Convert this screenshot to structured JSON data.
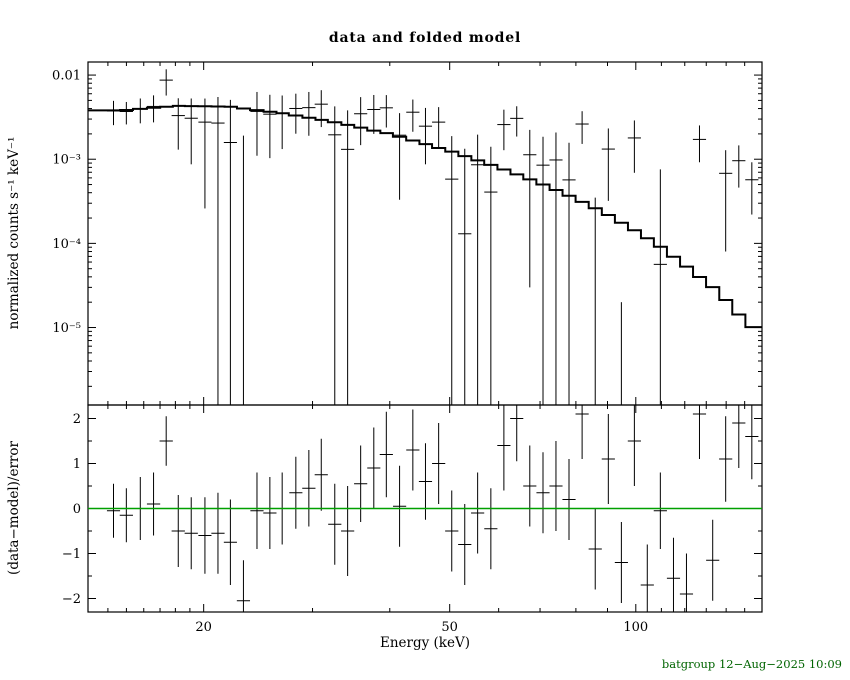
{
  "title": "data and folded model",
  "footer": {
    "text": "batgroup 12−Aug−2025 10:09"
  },
  "colors": {
    "background": "#ffffff",
    "frame": "#000000",
    "model_line": "#000000",
    "data_marks": "#000000",
    "zero_line": "#00a000",
    "footer_text": "#006400"
  },
  "axes": {
    "x": {
      "label": "Energy (keV)",
      "scale": "log",
      "min": 13,
      "max": 160,
      "major_ticks": [
        20,
        50,
        100
      ],
      "major_tick_labels": [
        "20",
        "50",
        "100"
      ],
      "minor_ticks": [
        14,
        15,
        16,
        17,
        18,
        19,
        30,
        40,
        60,
        70,
        80,
        90,
        110,
        120,
        130,
        140,
        150
      ]
    },
    "y_top": {
      "label": "normalized counts s⁻¹ keV⁻¹",
      "scale": "log",
      "min": 1.2e-06,
      "max": 0.0143,
      "major_ticks": [
        0.01,
        0.001,
        0.0001,
        1e-05
      ],
      "major_tick_labels": [
        "0.01",
        "10⁻³",
        "10⁻⁴",
        "10⁻⁵"
      ]
    },
    "y_bottom": {
      "label": "(data−model)/error",
      "scale": "linear",
      "min": -2.3,
      "max": 2.3,
      "major_ticks": [
        2,
        1,
        0,
        -1,
        -2
      ],
      "major_tick_labels": [
        "2",
        "1",
        "0",
        "−1",
        "−2"
      ],
      "minor_ticks": [
        1.5,
        0.5,
        -0.5,
        -1.5
      ]
    }
  },
  "chart_data": {
    "type": "scatter",
    "subtype": "xray-spectrum-data-and-folded-model-with-residuals",
    "title": "data and folded model",
    "xlabel": "Energy (keV)",
    "ylabel_top": "normalized counts s⁻¹ keV⁻¹",
    "ylabel_bottom": "(data−model)/error",
    "x_range": [
      13,
      160
    ],
    "y_top_range": [
      1.2e-06,
      0.0143
    ],
    "y_bottom_range": [
      -2.3,
      2.3
    ],
    "grid": false,
    "energy": [
      14.3,
      15.0,
      15.8,
      16.6,
      17.4,
      18.2,
      19.1,
      20.1,
      21.1,
      22.1,
      23.2,
      24.4,
      25.6,
      26.8,
      28.2,
      29.6,
      31.0,
      32.6,
      34.2,
      35.9,
      37.7,
      39.5,
      41.5,
      43.6,
      45.7,
      48.0,
      50.4,
      52.9,
      55.5,
      58.3,
      61.2,
      64.2,
      67.4,
      70.8,
      74.3,
      78.0,
      81.9,
      86.0,
      90.3,
      94.8,
      99.5,
      104.4,
      109.6,
      115.1,
      120.8,
      126.8,
      133.2,
      139.8,
      146.8,
      154.1
    ],
    "half_width": [
      0.35,
      0.37,
      0.39,
      0.41,
      0.43,
      0.45,
      0.47,
      0.49,
      0.52,
      0.54,
      0.57,
      0.6,
      0.63,
      0.66,
      0.69,
      0.73,
      0.76,
      0.8,
      0.84,
      0.88,
      0.92,
      0.97,
      1.02,
      1.07,
      1.12,
      1.18,
      1.24,
      1.3,
      1.36,
      1.43,
      1.5,
      1.57,
      1.65,
      1.73,
      1.82,
      1.91,
      2.01,
      2.11,
      2.21,
      2.32,
      2.44,
      2.56,
      2.69,
      2.82,
      2.96,
      3.11,
      3.26,
      3.43,
      3.6,
      3.78
    ],
    "model": [
      0.0038,
      0.00385,
      0.00397,
      0.00409,
      0.00421,
      0.0043,
      0.00428,
      0.00426,
      0.00423,
      0.0042,
      0.00401,
      0.00383,
      0.00367,
      0.00352,
      0.00331,
      0.00311,
      0.00293,
      0.00275,
      0.00256,
      0.00237,
      0.00219,
      0.00204,
      0.00185,
      0.00167,
      0.00151,
      0.00136,
      0.00123,
      0.00109,
      0.000969,
      0.000857,
      0.000756,
      0.000661,
      0.000577,
      0.0005,
      0.00043,
      0.000368,
      0.000311,
      0.000261,
      0.000217,
      0.000176,
      0.000143,
      0.000115,
      9.13e-05,
      6.94e-05,
      5.29e-05,
      3.99e-05,
      3.02e-05,
      2.12e-05,
      1.43e-05,
      1.01e-05
    ],
    "data": [
      0.00374,
      0.00369,
      0.00397,
      0.00424,
      0.00871,
      0.0033,
      0.00307,
      0.00276,
      0.00269,
      0.00158,
      -9e-05,
      0.0037,
      0.00343,
      0.00352,
      0.00401,
      0.0041,
      0.00451,
      0.00195,
      0.00131,
      0.00347,
      0.0039,
      0.00408,
      0.00193,
      0.00362,
      0.00247,
      0.00276,
      0.00058,
      0.00013,
      0.000859,
      0.000407,
      0.00258,
      0.00306,
      0.00113,
      0.00085,
      0.00098,
      0.000568,
      0.00262,
      -0.00055,
      0.00132,
      -0.00078,
      0.00179,
      -0.00091,
      5.63e-05,
      -0.00071,
      -0.0008,
      0.00172,
      -0.00043,
      0.00068,
      0.00096,
      0.00057
    ],
    "error": [
      0.0012,
      0.0011,
      0.0013,
      0.0015,
      0.003,
      0.002,
      0.0022,
      0.0025,
      0.0028,
      0.0035,
      0.002,
      0.0026,
      0.0024,
      0.0022,
      0.002,
      0.0022,
      0.0021,
      0.0023,
      0.0025,
      0.002,
      0.0019,
      0.0017,
      0.0016,
      0.0015,
      0.0016,
      0.0014,
      0.0013,
      0.0012,
      0.0011,
      0.001,
      0.0013,
      0.0012,
      0.0011,
      0.001,
      0.0011,
      0.001,
      0.0011,
      0.0009,
      0.001,
      0.0008,
      0.0011,
      0.0006,
      0.0007,
      0.0005,
      0.00045,
      0.0008,
      0.0004,
      0.0006,
      0.0005,
      0.00035
    ],
    "residual": [
      -0.05,
      -0.15,
      0.0,
      0.1,
      1.5,
      -0.5,
      -0.55,
      -0.6,
      -0.55,
      -0.75,
      -2.05,
      -0.05,
      -0.1,
      0.0,
      0.35,
      0.45,
      0.75,
      -0.35,
      -0.5,
      0.55,
      0.9,
      1.2,
      0.05,
      1.3,
      0.6,
      1.0,
      -0.5,
      -0.8,
      -0.1,
      -0.45,
      1.4,
      2.0,
      0.5,
      0.35,
      0.5,
      0.2,
      2.1,
      -0.9,
      1.1,
      -1.2,
      1.5,
      -1.7,
      -0.05,
      -1.55,
      -1.9,
      2.1,
      -1.15,
      1.1,
      1.9,
      1.6
    ],
    "residual_error": [
      0.6,
      0.6,
      0.7,
      0.7,
      0.55,
      0.8,
      0.8,
      0.85,
      0.9,
      0.95,
      0.9,
      0.85,
      0.8,
      0.8,
      0.8,
      0.85,
      0.8,
      0.9,
      1.0,
      0.85,
      0.9,
      0.95,
      0.9,
      0.9,
      0.85,
      0.9,
      0.9,
      0.9,
      0.9,
      0.9,
      1.0,
      0.95,
      0.9,
      0.9,
      1.0,
      0.9,
      1.0,
      0.9,
      1.0,
      0.9,
      1.0,
      0.9,
      0.85,
      0.9,
      0.9,
      1.0,
      0.9,
      0.95,
      1.0,
      0.95
    ]
  }
}
